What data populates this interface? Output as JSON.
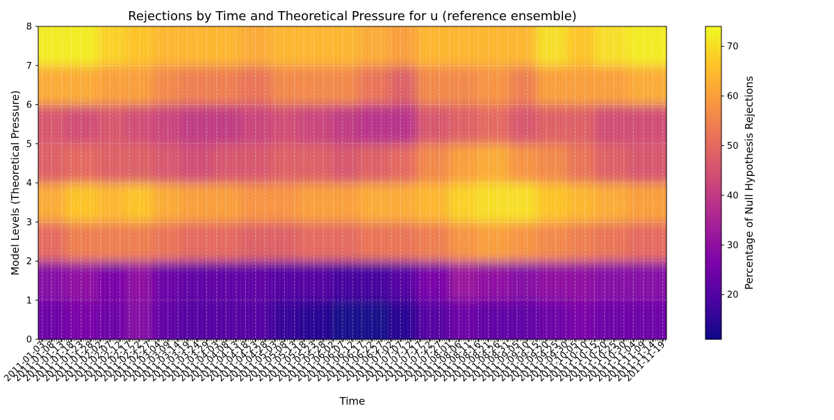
{
  "chart_data": {
    "type": "heatmap",
    "title": "Rejections by Time and Theoretical Pressure for u (reference ensemble)",
    "xlabel": "Time",
    "ylabel": "Model Levels (Theoretical Pressure)",
    "colorbar_label": "Percentage of Null Hypothesis Rejections",
    "colormap": "plasma",
    "grid": true,
    "x_start": "2011-01-01",
    "x_end": "2011-11-21",
    "x_tick_labels": [
      "2011-01-03",
      "2011-01-08",
      "2011-01-13",
      "2011-01-18",
      "2011-01-23",
      "2011-01-28",
      "2011-02-02",
      "2011-02-07",
      "2011-02-12",
      "2011-02-17",
      "2011-02-22",
      "2011-02-27",
      "2011-03-04",
      "2011-03-09",
      "2011-03-14",
      "2011-03-19",
      "2011-03-24",
      "2011-03-29",
      "2011-04-03",
      "2011-04-08",
      "2011-04-13",
      "2011-04-18",
      "2011-04-23",
      "2011-04-28",
      "2011-05-03",
      "2011-05-08",
      "2011-05-13",
      "2011-05-18",
      "2011-05-23",
      "2011-05-28",
      "2011-06-02",
      "2011-06-07",
      "2011-06-12",
      "2011-06-17",
      "2011-06-22",
      "2011-06-27",
      "2011-07-02",
      "2011-07-07",
      "2011-07-12",
      "2011-07-17",
      "2011-07-22",
      "2011-07-27",
      "2011-08-01",
      "2011-08-06",
      "2011-08-11",
      "2011-08-16",
      "2011-08-21",
      "2011-08-26",
      "2011-08-31",
      "2011-09-05",
      "2011-09-10",
      "2011-09-15",
      "2011-09-20",
      "2011-09-25",
      "2011-09-30",
      "2011-10-05",
      "2011-10-10",
      "2011-10-15",
      "2011-10-20",
      "2011-10-25",
      "2011-10-30",
      "2011-11-04",
      "2011-11-09",
      "2011-11-14",
      "2011-11-19"
    ],
    "y_levels": [
      0,
      1,
      2,
      3,
      4,
      5,
      6,
      7
    ],
    "ylim": [
      0,
      8
    ],
    "y_ticks": [
      "0",
      "1",
      "2",
      "3",
      "4",
      "5",
      "6",
      "7",
      "8"
    ],
    "color_range": [
      11,
      74
    ],
    "colorbar_ticks": [
      "20",
      "30",
      "40",
      "50",
      "60",
      "70"
    ],
    "time_segments": [
      {
        "start": "2011-01-01",
        "values": [
          24,
          28,
          50,
          62,
          48,
          46,
          62,
          72
        ]
      },
      {
        "start": "2011-01-15",
        "values": [
          26,
          30,
          54,
          66,
          50,
          44,
          62,
          72
        ]
      },
      {
        "start": "2011-02-01",
        "values": [
          24,
          26,
          54,
          64,
          48,
          46,
          60,
          68
        ]
      },
      {
        "start": "2011-02-15",
        "values": [
          28,
          30,
          54,
          66,
          48,
          44,
          60,
          66
        ]
      },
      {
        "start": "2011-03-01",
        "values": [
          22,
          24,
          52,
          62,
          46,
          42,
          56,
          64
        ]
      },
      {
        "start": "2011-03-15",
        "values": [
          20,
          22,
          50,
          60,
          44,
          40,
          54,
          64
        ]
      },
      {
        "start": "2011-04-01",
        "values": [
          20,
          22,
          50,
          60,
          46,
          40,
          54,
          64
        ]
      },
      {
        "start": "2011-04-15",
        "values": [
          20,
          22,
          48,
          58,
          46,
          42,
          52,
          62
        ]
      },
      {
        "start": "2011-05-01",
        "values": [
          16,
          20,
          48,
          58,
          48,
          44,
          56,
          64
        ]
      },
      {
        "start": "2011-05-15",
        "values": [
          14,
          20,
          50,
          60,
          48,
          42,
          56,
          64
        ]
      },
      {
        "start": "2011-06-01",
        "values": [
          12,
          18,
          50,
          60,
          46,
          40,
          56,
          64
        ]
      },
      {
        "start": "2011-06-15",
        "values": [
          12,
          18,
          52,
          62,
          48,
          38,
          52,
          62
        ]
      },
      {
        "start": "2011-07-01",
        "values": [
          14,
          20,
          52,
          62,
          50,
          38,
          48,
          60
        ]
      },
      {
        "start": "2011-07-15",
        "values": [
          20,
          26,
          54,
          64,
          56,
          46,
          56,
          64
        ]
      },
      {
        "start": "2011-08-01",
        "values": [
          24,
          32,
          58,
          68,
          60,
          48,
          56,
          64
        ]
      },
      {
        "start": "2011-08-15",
        "values": [
          22,
          30,
          60,
          70,
          62,
          50,
          58,
          64
        ]
      },
      {
        "start": "2011-09-01",
        "values": [
          22,
          28,
          58,
          70,
          58,
          46,
          54,
          64
        ]
      },
      {
        "start": "2011-09-15",
        "values": [
          24,
          30,
          56,
          66,
          56,
          48,
          60,
          70
        ]
      },
      {
        "start": "2011-10-01",
        "values": [
          26,
          30,
          54,
          64,
          52,
          48,
          60,
          66
        ]
      },
      {
        "start": "2011-10-15",
        "values": [
          24,
          28,
          52,
          62,
          48,
          44,
          60,
          70
        ]
      },
      {
        "start": "2011-11-01",
        "values": [
          24,
          28,
          50,
          60,
          46,
          44,
          62,
          72
        ]
      }
    ]
  }
}
